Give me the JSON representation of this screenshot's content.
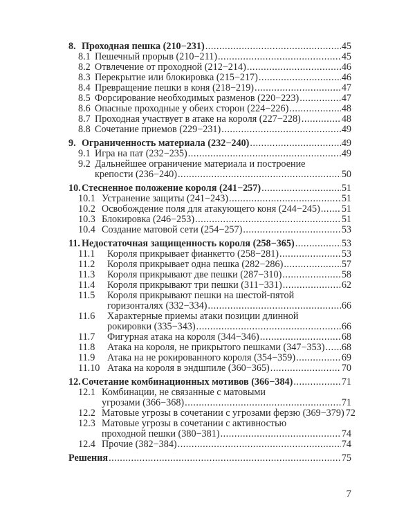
{
  "toc": [
    {
      "num": "8.",
      "title": "Проходная пешка (210−231)",
      "page": "45",
      "items": [
        {
          "num": "8.1",
          "title": "Пешечный прорыв (210−211)",
          "page": "45"
        },
        {
          "num": "8.2",
          "title": "Отвлечение от проходной (212−214)",
          "page": "46"
        },
        {
          "num": "8.3",
          "title": "Перекрытие или блокировка (215−217)",
          "page": "46"
        },
        {
          "num": "8.4",
          "title": "Превращение пешки в коня (218−219)",
          "page": "47"
        },
        {
          "num": "8.5",
          "title": "Форсирование необходимых разменов (220−223)",
          "page": "47"
        },
        {
          "num": "8.6",
          "title": "Опасные проходные у обеих сторон (224−226)",
          "page": "48"
        },
        {
          "num": "8.7",
          "title": "Проходная участвует в атаке на короля (227−228)",
          "page": "48"
        },
        {
          "num": "8.8",
          "title": "Сочетание приемов (229−231)",
          "page": "49"
        }
      ]
    },
    {
      "num": "9.",
      "title": "Ограниченность материала (232−240)",
      "page": "49",
      "items": [
        {
          "num": "9.1",
          "title": "Игра на пат (232−235)",
          "page": "49"
        },
        {
          "num": "9.2",
          "title": "Дальнейшее ограничение материала и построение",
          "title_cont": "крепости (236−240)",
          "page": "50"
        }
      ]
    },
    {
      "num": "10.",
      "title": "Стесненное положение короля (241−257)",
      "page": "51",
      "items": [
        {
          "num": "10.1",
          "title": "Устранение защиты (241−243)",
          "page": "51"
        },
        {
          "num": "10.2",
          "title": "Освобождение поля для атакующего коня (244−245)",
          "page": "51"
        },
        {
          "num": "10.3",
          "title": "Блокировка (246−253)",
          "page": "51"
        },
        {
          "num": "10.4",
          "title": "Создание матовой сети (254−257)",
          "page": "53"
        }
      ]
    },
    {
      "num": "11.",
      "title": "Недостаточная защищенность короля (258−365)",
      "page": "53",
      "items": [
        {
          "num": "11.1",
          "title": "Короля прикрывает фианкетто (258−281)",
          "page": "53"
        },
        {
          "num": "11.2",
          "title": "Короля прикрывает одна пешка (282−286)",
          "page": "57"
        },
        {
          "num": "11.3",
          "title": "Короля прикрывают две пешки (287−310)",
          "page": "58"
        },
        {
          "num": "11.4",
          "title": "Короля прикрывают три пешки (311−331)",
          "page": "62"
        },
        {
          "num": "11.5",
          "title": "Короля прикрывают пешки на шестой-пятой",
          "title_cont": "горизонталях (332−334)",
          "page": "66"
        },
        {
          "num": "11.6",
          "title": "Характерные приемы атаки позиции длинной",
          "title_cont": "рокировки (335−343)",
          "page": "66"
        },
        {
          "num": "11.7",
          "title": "Фигурная атака на короля (344−346)",
          "page": "68"
        },
        {
          "num": "11.8",
          "title": "Атака на короля, не прикрытого пешками (347−353)",
          "page": "68"
        },
        {
          "num": "11.9",
          "title": "Атака на не рокированного короля (354−359)",
          "page": "69"
        },
        {
          "num": "11.10",
          "title": "Атака на короля в эндшпиле (360−365)",
          "page": "70"
        }
      ]
    },
    {
      "num": "12.",
      "title": "Сочетание комбинационных мотивов (366−384)",
      "page": "71",
      "items": [
        {
          "num": "12.1",
          "title": "Комбинации, не связанные с матовыми",
          "title_cont": "угрозами (366−368)",
          "page": "71"
        },
        {
          "num": "12.2",
          "title": "Матовые угрозы в сочетании с угрозами ферзю (369−379)",
          "page": "72"
        },
        {
          "num": "12.3",
          "title": "Матовые угрозы в сочетании с активностью",
          "title_cont": "проходной пешки (380−381)",
          "page": "74"
        },
        {
          "num": "12.4",
          "title": "Прочие (382−384)",
          "page": "74"
        }
      ]
    }
  ],
  "solutions": {
    "title": "Решения",
    "page": "75"
  },
  "page_number": "7"
}
